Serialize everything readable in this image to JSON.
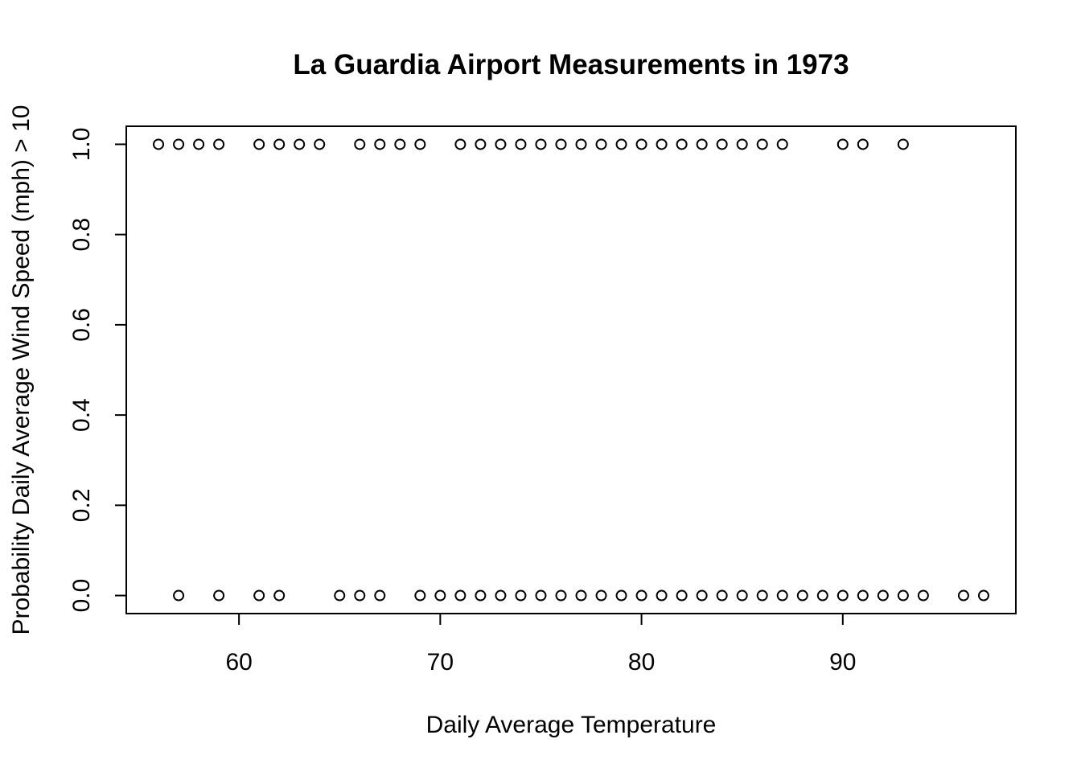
{
  "chart_data": {
    "type": "scatter",
    "title": "La Guardia Airport Measurements in 1973",
    "xlabel": "Daily Average Temperature",
    "ylabel": "Probability Daily Average Wind Speed (mph) > 10",
    "xlim": [
      54.4,
      98.6
    ],
    "ylim": [
      -0.04,
      1.04
    ],
    "xticks": [
      60,
      70,
      80,
      90
    ],
    "yticks": [
      0.0,
      0.2,
      0.4,
      0.6,
      0.8,
      1.0
    ],
    "xtick_labels": [
      "60",
      "70",
      "80",
      "90"
    ],
    "ytick_labels": [
      "0.0",
      "0.2",
      "0.4",
      "0.6",
      "0.8",
      "1.0"
    ],
    "grid": false,
    "marker": "open-circle",
    "series": [
      {
        "points": [
          [
            56,
            1
          ],
          [
            57,
            1
          ],
          [
            58,
            1
          ],
          [
            59,
            1
          ],
          [
            61,
            1
          ],
          [
            62,
            1
          ],
          [
            63,
            1
          ],
          [
            64,
            1
          ],
          [
            66,
            1
          ],
          [
            67,
            1
          ],
          [
            68,
            1
          ],
          [
            69,
            1
          ],
          [
            71,
            1
          ],
          [
            72,
            1
          ],
          [
            73,
            1
          ],
          [
            74,
            1
          ],
          [
            75,
            1
          ],
          [
            76,
            1
          ],
          [
            77,
            1
          ],
          [
            78,
            1
          ],
          [
            79,
            1
          ],
          [
            80,
            1
          ],
          [
            81,
            1
          ],
          [
            82,
            1
          ],
          [
            83,
            1
          ],
          [
            84,
            1
          ],
          [
            85,
            1
          ],
          [
            86,
            1
          ],
          [
            87,
            1
          ],
          [
            90,
            1
          ],
          [
            91,
            1
          ],
          [
            93,
            1
          ],
          [
            57,
            0
          ],
          [
            59,
            0
          ],
          [
            61,
            0
          ],
          [
            62,
            0
          ],
          [
            65,
            0
          ],
          [
            66,
            0
          ],
          [
            67,
            0
          ],
          [
            69,
            0
          ],
          [
            70,
            0
          ],
          [
            71,
            0
          ],
          [
            72,
            0
          ],
          [
            73,
            0
          ],
          [
            74,
            0
          ],
          [
            75,
            0
          ],
          [
            76,
            0
          ],
          [
            77,
            0
          ],
          [
            78,
            0
          ],
          [
            79,
            0
          ],
          [
            80,
            0
          ],
          [
            81,
            0
          ],
          [
            82,
            0
          ],
          [
            83,
            0
          ],
          [
            84,
            0
          ],
          [
            85,
            0
          ],
          [
            86,
            0
          ],
          [
            87,
            0
          ],
          [
            88,
            0
          ],
          [
            89,
            0
          ],
          [
            90,
            0
          ],
          [
            91,
            0
          ],
          [
            92,
            0
          ],
          [
            93,
            0
          ],
          [
            94,
            0
          ],
          [
            96,
            0
          ],
          [
            97,
            0
          ]
        ]
      }
    ]
  }
}
